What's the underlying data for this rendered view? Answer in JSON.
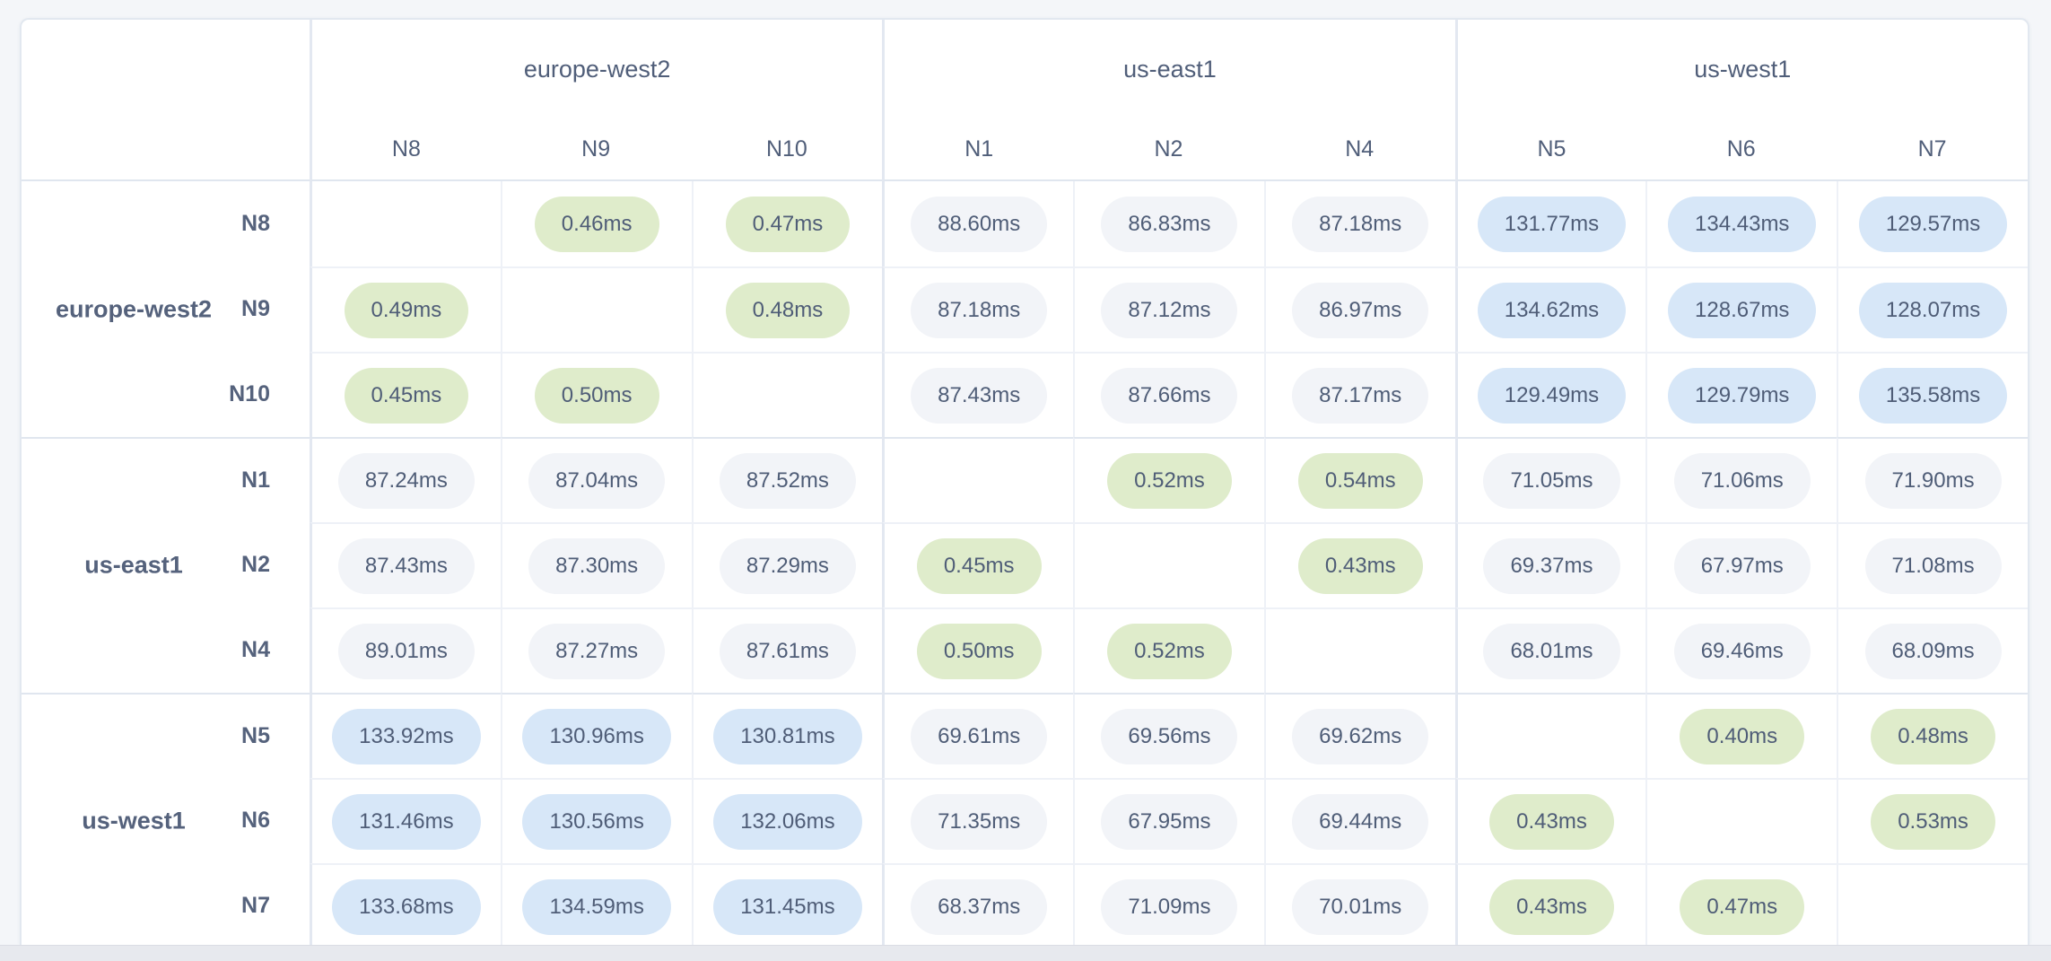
{
  "colors": {
    "page_background": "#f4f6f9",
    "table_background": "#ffffff",
    "border": "#e2e8f0",
    "low_latency_badge": "#dfeccb",
    "mid_latency_badge": "#f2f4f8",
    "high_latency_badge": "#d7e7f8",
    "text": "#505e79"
  },
  "column_groups": [
    {
      "region": "europe-west2",
      "nodes": [
        "N8",
        "N9",
        "N10"
      ]
    },
    {
      "region": "us-east1",
      "nodes": [
        "N1",
        "N2",
        "N4"
      ]
    },
    {
      "region": "us-west1",
      "nodes": [
        "N5",
        "N6",
        "N7"
      ]
    }
  ],
  "row_groups": [
    {
      "region": "europe-west2",
      "rows": [
        {
          "node": "N8",
          "cells": [
            {
              "type": "self",
              "value": ""
            },
            {
              "type": "low",
              "value": "0.46ms"
            },
            {
              "type": "low",
              "value": "0.47ms"
            },
            {
              "type": "mid",
              "value": "88.60ms"
            },
            {
              "type": "mid",
              "value": "86.83ms"
            },
            {
              "type": "mid",
              "value": "87.18ms"
            },
            {
              "type": "high",
              "value": "131.77ms"
            },
            {
              "type": "high",
              "value": "134.43ms"
            },
            {
              "type": "high",
              "value": "129.57ms"
            }
          ]
        },
        {
          "node": "N9",
          "cells": [
            {
              "type": "low",
              "value": "0.49ms"
            },
            {
              "type": "self",
              "value": ""
            },
            {
              "type": "low",
              "value": "0.48ms"
            },
            {
              "type": "mid",
              "value": "87.18ms"
            },
            {
              "type": "mid",
              "value": "87.12ms"
            },
            {
              "type": "mid",
              "value": "86.97ms"
            },
            {
              "type": "high",
              "value": "134.62ms"
            },
            {
              "type": "high",
              "value": "128.67ms"
            },
            {
              "type": "high",
              "value": "128.07ms"
            }
          ]
        },
        {
          "node": "N10",
          "cells": [
            {
              "type": "low",
              "value": "0.45ms"
            },
            {
              "type": "low",
              "value": "0.50ms"
            },
            {
              "type": "self",
              "value": ""
            },
            {
              "type": "mid",
              "value": "87.43ms"
            },
            {
              "type": "mid",
              "value": "87.66ms"
            },
            {
              "type": "mid",
              "value": "87.17ms"
            },
            {
              "type": "high",
              "value": "129.49ms"
            },
            {
              "type": "high",
              "value": "129.79ms"
            },
            {
              "type": "high",
              "value": "135.58ms"
            }
          ]
        }
      ]
    },
    {
      "region": "us-east1",
      "rows": [
        {
          "node": "N1",
          "cells": [
            {
              "type": "mid",
              "value": "87.24ms"
            },
            {
              "type": "mid",
              "value": "87.04ms"
            },
            {
              "type": "mid",
              "value": "87.52ms"
            },
            {
              "type": "self",
              "value": ""
            },
            {
              "type": "low",
              "value": "0.52ms"
            },
            {
              "type": "low",
              "value": "0.54ms"
            },
            {
              "type": "mid",
              "value": "71.05ms"
            },
            {
              "type": "mid",
              "value": "71.06ms"
            },
            {
              "type": "mid",
              "value": "71.90ms"
            }
          ]
        },
        {
          "node": "N2",
          "cells": [
            {
              "type": "mid",
              "value": "87.43ms"
            },
            {
              "type": "mid",
              "value": "87.30ms"
            },
            {
              "type": "mid",
              "value": "87.29ms"
            },
            {
              "type": "low",
              "value": "0.45ms"
            },
            {
              "type": "self",
              "value": ""
            },
            {
              "type": "low",
              "value": "0.43ms"
            },
            {
              "type": "mid",
              "value": "69.37ms"
            },
            {
              "type": "mid",
              "value": "67.97ms"
            },
            {
              "type": "mid",
              "value": "71.08ms"
            }
          ]
        },
        {
          "node": "N4",
          "cells": [
            {
              "type": "mid",
              "value": "89.01ms"
            },
            {
              "type": "mid",
              "value": "87.27ms"
            },
            {
              "type": "mid",
              "value": "87.61ms"
            },
            {
              "type": "low",
              "value": "0.50ms"
            },
            {
              "type": "low",
              "value": "0.52ms"
            },
            {
              "type": "self",
              "value": ""
            },
            {
              "type": "mid",
              "value": "68.01ms"
            },
            {
              "type": "mid",
              "value": "69.46ms"
            },
            {
              "type": "mid",
              "value": "68.09ms"
            }
          ]
        }
      ]
    },
    {
      "region": "us-west1",
      "rows": [
        {
          "node": "N5",
          "cells": [
            {
              "type": "high",
              "value": "133.92ms"
            },
            {
              "type": "high",
              "value": "130.96ms"
            },
            {
              "type": "high",
              "value": "130.81ms"
            },
            {
              "type": "mid",
              "value": "69.61ms"
            },
            {
              "type": "mid",
              "value": "69.56ms"
            },
            {
              "type": "mid",
              "value": "69.62ms"
            },
            {
              "type": "self",
              "value": ""
            },
            {
              "type": "low",
              "value": "0.40ms"
            },
            {
              "type": "low",
              "value": "0.48ms"
            }
          ]
        },
        {
          "node": "N6",
          "cells": [
            {
              "type": "high",
              "value": "131.46ms"
            },
            {
              "type": "high",
              "value": "130.56ms"
            },
            {
              "type": "high",
              "value": "132.06ms"
            },
            {
              "type": "mid",
              "value": "71.35ms"
            },
            {
              "type": "mid",
              "value": "67.95ms"
            },
            {
              "type": "mid",
              "value": "69.44ms"
            },
            {
              "type": "low",
              "value": "0.43ms"
            },
            {
              "type": "self",
              "value": ""
            },
            {
              "type": "low",
              "value": "0.53ms"
            }
          ]
        },
        {
          "node": "N7",
          "cells": [
            {
              "type": "high",
              "value": "133.68ms"
            },
            {
              "type": "high",
              "value": "134.59ms"
            },
            {
              "type": "high",
              "value": "131.45ms"
            },
            {
              "type": "mid",
              "value": "68.37ms"
            },
            {
              "type": "mid",
              "value": "71.09ms"
            },
            {
              "type": "mid",
              "value": "70.01ms"
            },
            {
              "type": "low",
              "value": "0.43ms"
            },
            {
              "type": "low",
              "value": "0.47ms"
            },
            {
              "type": "self",
              "value": ""
            }
          ]
        }
      ]
    }
  ]
}
